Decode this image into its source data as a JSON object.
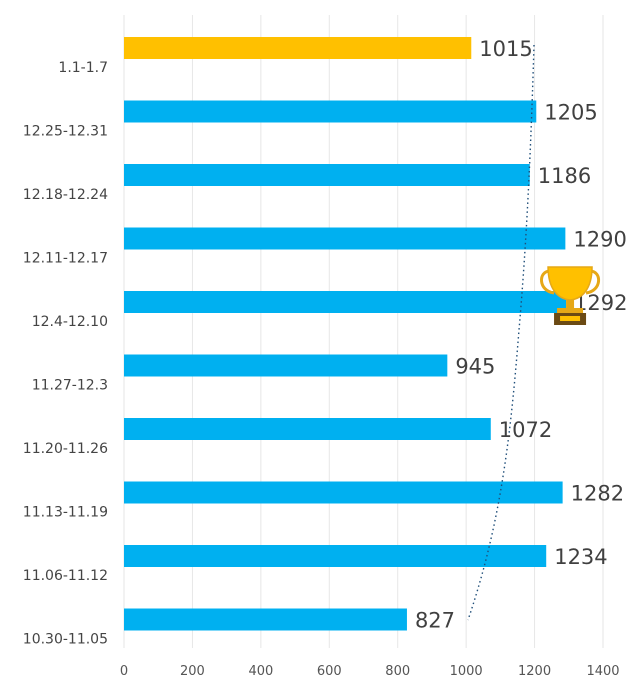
{
  "chart_data": {
    "type": "bar",
    "orientation": "horizontal",
    "title": "",
    "xlabel": "",
    "ylabel": "",
    "xlim": [
      0,
      1400
    ],
    "x_ticks": [
      0,
      200,
      400,
      600,
      800,
      1000,
      1200,
      1400
    ],
    "grid": "vertical",
    "legend": "none",
    "categories": [
      "1.1-1.7",
      "12.25-12.31",
      "12.18-12.24",
      "12.11-12.17",
      "12.4-12.10",
      "11.27-12.3",
      "11.20-11.26",
      "11.13-11.19",
      "11.06-11.12",
      "10.30-11.05"
    ],
    "values": [
      1015,
      1205,
      1186,
      1290,
      1292,
      945,
      1072,
      1282,
      1234,
      827
    ],
    "highlight_category": "1.1-1.7",
    "max_marker_category": "12.4-12.10",
    "max_marker_icon": "trophy-icon",
    "trendline": "dotted",
    "colors": {
      "bar": "#00b0f0",
      "highlight": "#ffc000",
      "trendline": "#1f4e79",
      "grid": "#e6e6e6"
    }
  }
}
